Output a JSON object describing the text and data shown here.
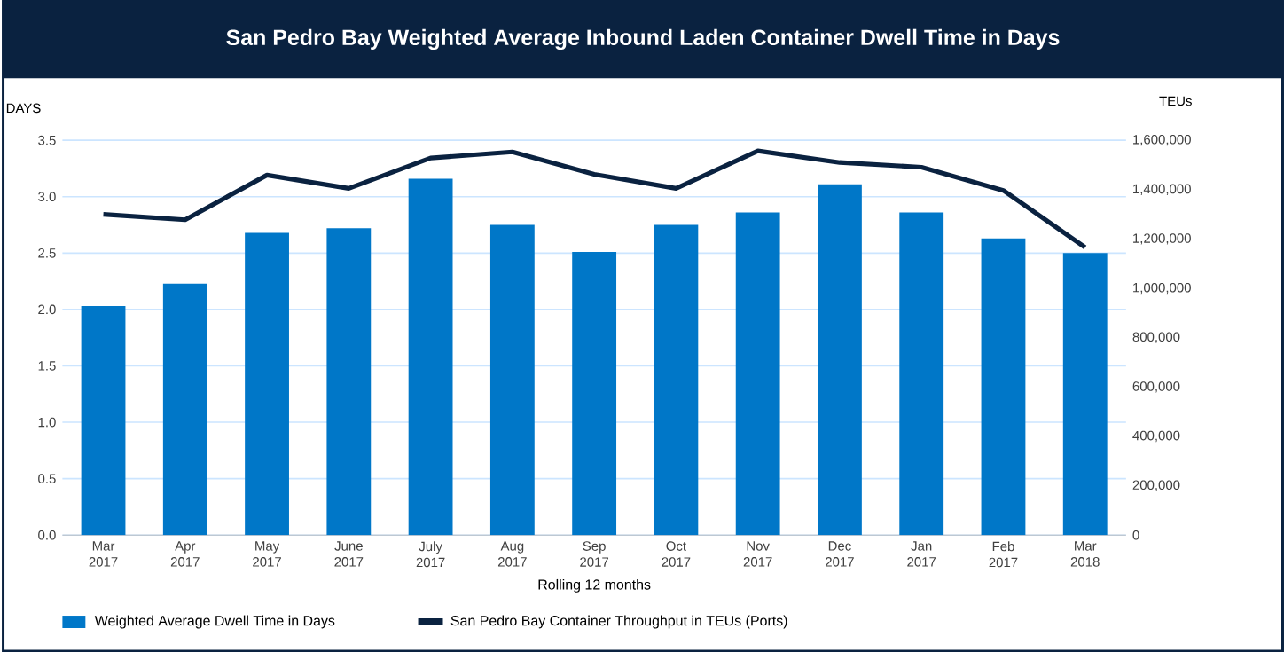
{
  "chart_data": {
    "type": "bar",
    "title": "San Pedro Bay Weighted Average Inbound Laden Container Dwell Time in Days",
    "xlabel": "Rolling 12 months",
    "ylabel": "DAYS",
    "y2label": "TEUs",
    "categories": [
      "Mar 2017",
      "Apr 2017",
      "May 2017",
      "June 2017",
      "July 2017",
      "Aug 2017",
      "Sep 2017",
      "Oct 2017",
      "Nov 2017",
      "Dec 2017",
      "Jan 2017",
      "Feb 2017",
      "Mar 2018"
    ],
    "series": [
      {
        "name": "Weighted Average Dwell Time in Days",
        "color": "#0077c8",
        "values": [
          2.03,
          2.23,
          2.68,
          2.72,
          3.16,
          2.75,
          2.51,
          2.75,
          2.86,
          3.11,
          2.86,
          2.63,
          2.5
        ]
      },
      {
        "name": "San Pedro Bay Container Throughput in TEUs (Ports)",
        "type": "line",
        "axis": "y2",
        "color": "#0a2240",
        "values": [
          1300000,
          1278000,
          1459000,
          1405000,
          1528000,
          1553000,
          1462000,
          1405000,
          1557000,
          1510000,
          1491000,
          1397000,
          1166000
        ]
      }
    ],
    "ylim": [
      0,
      3.5
    ],
    "yticks": [
      {
        "value": 0,
        "label": "0.0"
      },
      0.5,
      {
        "value": 1,
        "label": "1.0"
      },
      1.5,
      {
        "value": 2,
        "label": "2.0"
      },
      2.5,
      {
        "value": 3,
        "label": "3.0"
      },
      3.5
    ],
    "y2lim": [
      0,
      1600000
    ],
    "y2ticks": [
      0,
      {
        "value": 200000,
        "label": "200,000"
      },
      {
        "value": 400000,
        "label": "400,000"
      },
      {
        "value": 600000,
        "label": "600,000"
      },
      {
        "value": 800000,
        "label": "800,000"
      },
      {
        "value": 1000000,
        "label": "1,000,000"
      },
      {
        "value": 1200000,
        "label": "1,200,000"
      },
      {
        "value": 1400000,
        "label": "1,400,000"
      },
      {
        "value": 1600000,
        "label": "1,600,000"
      }
    ],
    "grid": "y",
    "legend": "bottom left"
  }
}
